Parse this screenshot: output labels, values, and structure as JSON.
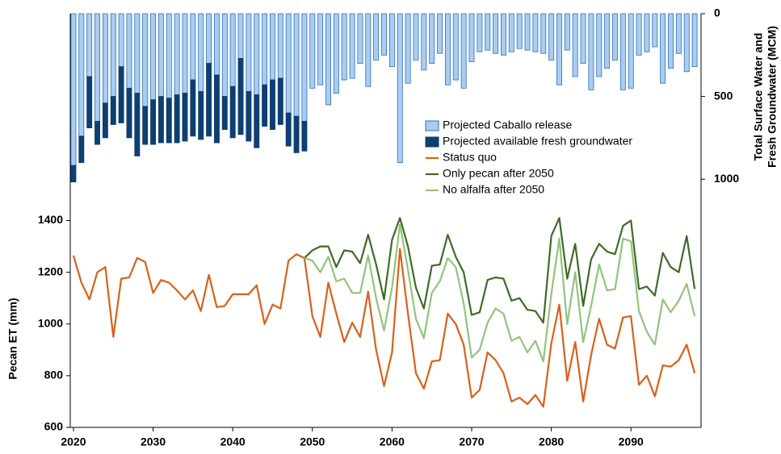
{
  "chart_data": {
    "type": "combo",
    "x": [
      2020,
      2021,
      2022,
      2023,
      2024,
      2025,
      2026,
      2027,
      2028,
      2029,
      2030,
      2031,
      2032,
      2033,
      2034,
      2035,
      2036,
      2037,
      2038,
      2039,
      2040,
      2041,
      2042,
      2043,
      2044,
      2045,
      2046,
      2047,
      2048,
      2049,
      2050,
      2051,
      2052,
      2053,
      2054,
      2055,
      2056,
      2057,
      2058,
      2059,
      2060,
      2061,
      2062,
      2063,
      2064,
      2065,
      2066,
      2067,
      2068,
      2069,
      2070,
      2071,
      2072,
      2073,
      2074,
      2075,
      2076,
      2077,
      2078,
      2079,
      2080,
      2081,
      2082,
      2083,
      2084,
      2085,
      2086,
      2087,
      2088,
      2089,
      2090,
      2091,
      2092,
      2093,
      2094,
      2095,
      2096,
      2097,
      2098
    ],
    "xlim": [
      2019.6,
      2098.8
    ],
    "xticks": [
      2020,
      2030,
      2040,
      2050,
      2060,
      2070,
      2080,
      2090
    ],
    "ylabel": "Pecan ET (mm)",
    "ylim": [
      600,
      2200
    ],
    "yticks": [
      600,
      800,
      1000,
      1200,
      1400
    ],
    "y2label": [
      "Total Surface Water and",
      "Fresh Groundwater (MCM)"
    ],
    "y2lim": [
      0,
      2500
    ],
    "y2ticks": [
      0,
      500,
      1000
    ],
    "y2inverted": true,
    "series": [
      {
        "name": "Projected Caballo release",
        "type": "bar",
        "axis": "y2",
        "color": "#a9cdf2",
        "edge": "#2f6fb5",
        "values": [
          917,
          740,
          380,
          650,
          540,
          500,
          320,
          450,
          480,
          560,
          520,
          500,
          510,
          490,
          480,
          400,
          470,
          300,
          370,
          500,
          440,
          270,
          470,
          490,
          430,
          400,
          390,
          600,
          620,
          650,
          450,
          430,
          550,
          480,
          400,
          390,
          300,
          440,
          280,
          250,
          320,
          900,
          420,
          280,
          340,
          300,
          240,
          430,
          400,
          450,
          290,
          230,
          220,
          240,
          250,
          230,
          210,
          220,
          230,
          240,
          280,
          430,
          220,
          380,
          300,
          460,
          380,
          330,
          280,
          460,
          450,
          250,
          230,
          200,
          420,
          330,
          240,
          350,
          320
        ]
      },
      {
        "name": "Projected available fresh groundwater",
        "type": "bar",
        "axis": "y2",
        "stack": true,
        "color": "#0d3f73",
        "edge": "#0d3f73",
        "values": [
          100,
          160,
          310,
          140,
          210,
          170,
          340,
          300,
          380,
          230,
          270,
          280,
          270,
          290,
          290,
          340,
          290,
          440,
          410,
          200,
          310,
          460,
          300,
          320,
          250,
          300,
          280,
          200,
          220,
          180,
          null,
          null,
          null,
          null,
          null,
          null,
          null,
          null,
          null,
          null,
          null,
          null,
          null,
          null,
          null,
          null,
          null,
          null,
          null,
          null,
          null,
          null,
          null,
          null,
          null,
          null,
          null,
          null,
          null,
          null,
          null,
          null,
          null,
          null,
          null,
          null,
          null,
          null,
          null,
          null,
          null,
          null,
          null,
          null,
          null,
          null,
          null,
          null,
          null
        ]
      },
      {
        "name": "Status quo",
        "type": "line",
        "color": "#d9601a",
        "values": [
          1265,
          1160,
          1095,
          1200,
          1220,
          950,
          1175,
          1180,
          1255,
          1240,
          1120,
          1170,
          1160,
          1130,
          1095,
          1130,
          1050,
          1190,
          1065,
          1070,
          1115,
          1115,
          1115,
          1150,
          1000,
          1075,
          1060,
          1245,
          1270,
          1255,
          1030,
          950,
          1160,
          1040,
          930,
          1005,
          950,
          1125,
          900,
          760,
          890,
          1290,
          1040,
          810,
          750,
          855,
          860,
          1040,
          1000,
          920,
          715,
          745,
          890,
          860,
          810,
          700,
          715,
          690,
          725,
          680,
          925,
          1075,
          780,
          930,
          700,
          880,
          1020,
          920,
          905,
          1025,
          1030,
          765,
          800,
          720,
          840,
          835,
          860,
          920,
          810
        ]
      },
      {
        "name": "Only pecan after 2050",
        "type": "line",
        "color": "#3e6b26",
        "values": [
          null,
          null,
          null,
          null,
          null,
          null,
          null,
          null,
          null,
          null,
          null,
          null,
          null,
          null,
          null,
          null,
          null,
          null,
          null,
          null,
          null,
          null,
          null,
          null,
          null,
          null,
          null,
          null,
          null,
          1255,
          1285,
          1300,
          1300,
          1220,
          1285,
          1280,
          1235,
          1345,
          1230,
          1095,
          1325,
          1410,
          1300,
          1140,
          1060,
          1225,
          1230,
          1345,
          1260,
          1200,
          1035,
          1045,
          1170,
          1180,
          1175,
          1090,
          1100,
          1055,
          1050,
          1005,
          1340,
          1410,
          1175,
          1310,
          1070,
          1250,
          1310,
          1280,
          1270,
          1380,
          1400,
          1135,
          1145,
          1110,
          1275,
          1220,
          1200,
          1340,
          1135
        ]
      },
      {
        "name": "No alfalfa after 2050",
        "type": "line",
        "color": "#93c47d",
        "values": [
          null,
          null,
          null,
          null,
          null,
          null,
          null,
          null,
          null,
          null,
          null,
          null,
          null,
          null,
          null,
          null,
          null,
          null,
          null,
          null,
          null,
          null,
          null,
          null,
          null,
          null,
          null,
          null,
          null,
          1255,
          1245,
          1200,
          1260,
          1165,
          1175,
          1120,
          1120,
          1265,
          1100,
          975,
          1140,
          1385,
          1210,
          1020,
          945,
          1120,
          1165,
          1255,
          1220,
          1080,
          870,
          900,
          1005,
          1060,
          1040,
          935,
          950,
          890,
          935,
          855,
          1115,
          1330,
          1000,
          1200,
          930,
          1070,
          1230,
          1130,
          1135,
          1330,
          1320,
          1050,
          970,
          920,
          1095,
          1045,
          1090,
          1155,
          1030
        ]
      }
    ]
  }
}
